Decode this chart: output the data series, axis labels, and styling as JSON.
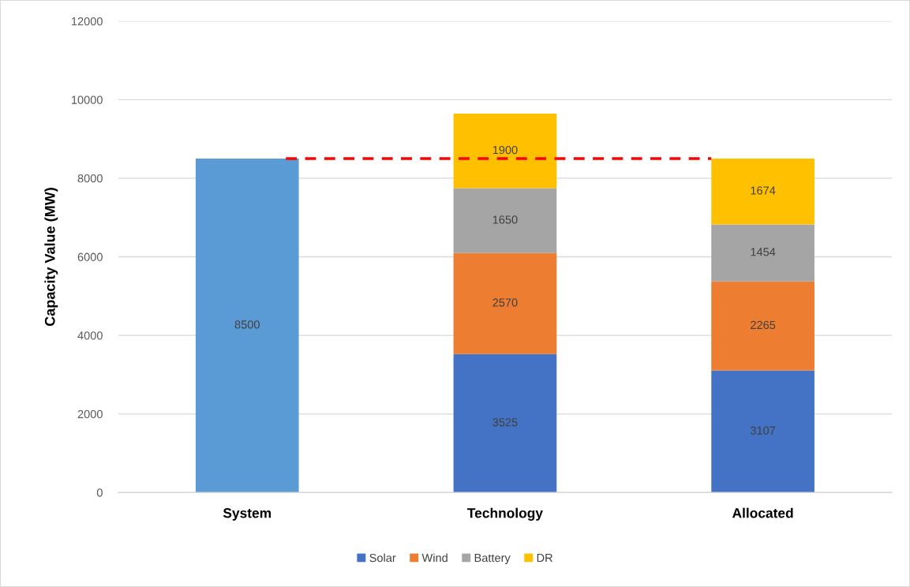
{
  "chart_data": {
    "type": "bar",
    "stacked": true,
    "ylabel": "Capacity Value (MW)",
    "categories": [
      "System",
      "Technology",
      "Allocated"
    ],
    "series": [
      {
        "color": "#5b9bd5",
        "values": [
          8500,
          null,
          null
        ]
      },
      {
        "name": "Solar",
        "color": "#4472c4",
        "values": [
          null,
          3525,
          3107
        ]
      },
      {
        "name": "Wind",
        "color": "#ed7d31",
        "values": [
          null,
          2570,
          2265
        ]
      },
      {
        "name": "Battery",
        "color": "#a5a5a5",
        "values": [
          null,
          1650,
          1454
        ]
      },
      {
        "name": "DR",
        "color": "#ffc000",
        "values": [
          null,
          1900,
          1674
        ]
      }
    ],
    "ylim": [
      0,
      12000
    ],
    "yticks": [
      0,
      2000,
      4000,
      6000,
      8000,
      10000,
      12000
    ],
    "grid": "y",
    "legend": "bottom",
    "data_labels": true,
    "ref_lines": [
      {
        "axis": "y",
        "value": 8500,
        "color": "#ff0000",
        "line_style": "dashed"
      }
    ]
  }
}
